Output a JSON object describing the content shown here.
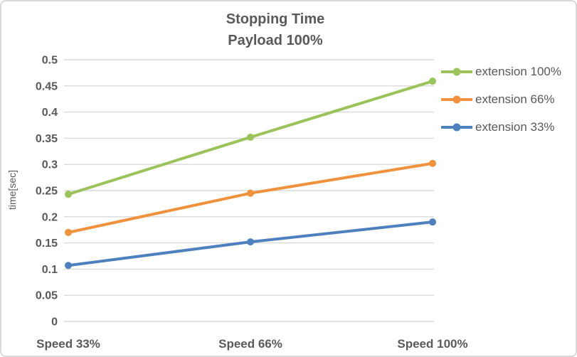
{
  "window": {
    "background": "#FFFFFF",
    "border_color": "#D9D9D9"
  },
  "chart_data": {
    "type": "line",
    "title": "Stopping Time",
    "subtitle": "Payload 100%",
    "ylabel": "time[sec]",
    "xlabel": "",
    "categories": [
      "Speed 33%",
      "Speed 66%",
      "Speed 100%"
    ],
    "series": [
      {
        "name": "extension 100%",
        "color": "#9CC35B",
        "values": [
          0.243,
          0.352,
          0.459
        ]
      },
      {
        "name": "extension 66%",
        "color": "#F0913E",
        "values": [
          0.17,
          0.245,
          0.302
        ]
      },
      {
        "name": "extension 33%",
        "color": "#4E80BD",
        "values": [
          0.107,
          0.152,
          0.19
        ]
      }
    ],
    "ylim": [
      0,
      0.5
    ],
    "ytick_step": 0.05,
    "ytick_labels": [
      "0",
      "0.05",
      "0.1",
      "0.15",
      "0.2",
      "0.25",
      "0.3",
      "0.35",
      "0.4",
      "0.45",
      "0.5"
    ],
    "grid": true,
    "gridline_color": "#D9D9D9",
    "text_color": "#595959",
    "legend_position": "right",
    "marker": "circle"
  }
}
